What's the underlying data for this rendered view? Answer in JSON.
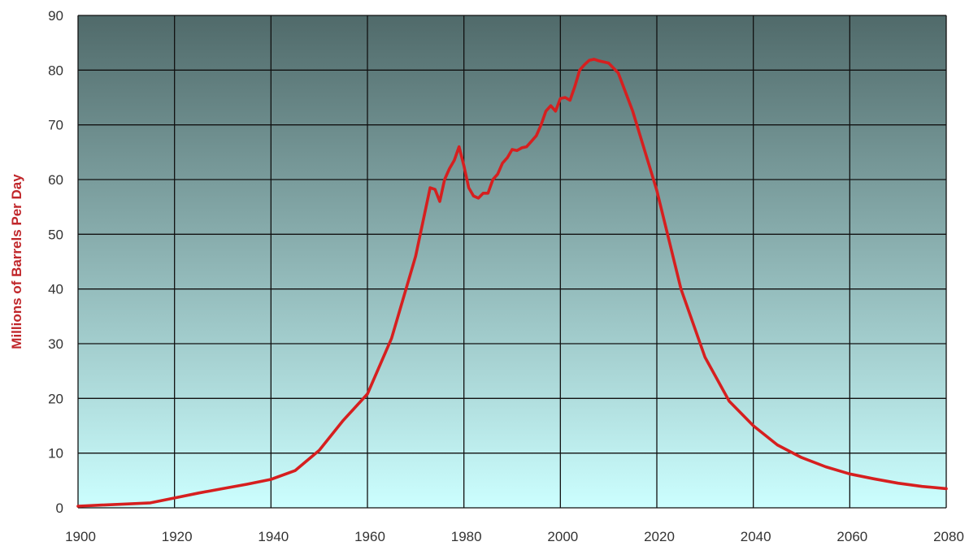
{
  "chart_data": {
    "type": "line",
    "title": "",
    "xlabel": "",
    "ylabel": "Millions of Barrels Per Day",
    "xlim": [
      1900,
      2080
    ],
    "ylim": [
      0,
      90
    ],
    "x_ticks": [
      1900,
      1920,
      1940,
      1960,
      1980,
      2000,
      2020,
      2040,
      2060,
      2080
    ],
    "y_ticks": [
      0,
      10,
      20,
      30,
      40,
      50,
      60,
      70,
      80,
      90
    ],
    "x_tick_labels": [
      "1900",
      "1920",
      "1940",
      "1960",
      "1980",
      "2000",
      "2020",
      "2040",
      "2060",
      "2080"
    ],
    "y_tick_labels": [
      "0",
      "10",
      "20",
      "30",
      "40",
      "50",
      "60",
      "70",
      "80",
      "90"
    ],
    "grid": true,
    "legend": "none",
    "series": [
      {
        "color": "#d61f1f",
        "points": [
          [
            1900,
            0.3
          ],
          [
            1905,
            0.5
          ],
          [
            1910,
            0.7
          ],
          [
            1915,
            0.9
          ],
          [
            1920,
            1.8
          ],
          [
            1925,
            2.7
          ],
          [
            1930,
            3.5
          ],
          [
            1935,
            4.3
          ],
          [
            1940,
            5.2
          ],
          [
            1945,
            6.8
          ],
          [
            1950,
            10.5
          ],
          [
            1955,
            16.0
          ],
          [
            1960,
            20.8
          ],
          [
            1965,
            31.0
          ],
          [
            1970,
            46.0
          ],
          [
            1973,
            58.5
          ],
          [
            1974,
            58.2
          ],
          [
            1975,
            56.0
          ],
          [
            1976,
            60.0
          ],
          [
            1977,
            62.0
          ],
          [
            1978,
            63.5
          ],
          [
            1979,
            66.0
          ],
          [
            1980,
            62.5
          ],
          [
            1981,
            58.5
          ],
          [
            1982,
            57.0
          ],
          [
            1983,
            56.6
          ],
          [
            1984,
            57.5
          ],
          [
            1985,
            57.5
          ],
          [
            1986,
            60.0
          ],
          [
            1987,
            61.0
          ],
          [
            1988,
            63.0
          ],
          [
            1989,
            64.0
          ],
          [
            1990,
            65.5
          ],
          [
            1991,
            65.3
          ],
          [
            1992,
            65.8
          ],
          [
            1993,
            66.0
          ],
          [
            1994,
            67.0
          ],
          [
            1995,
            68.0
          ],
          [
            1996,
            70.0
          ],
          [
            1997,
            72.5
          ],
          [
            1998,
            73.5
          ],
          [
            1999,
            72.5
          ],
          [
            2000,
            74.8
          ],
          [
            2001,
            75.0
          ],
          [
            2002,
            74.5
          ],
          [
            2003,
            77.0
          ],
          [
            2004,
            80.0
          ],
          [
            2005,
            81.0
          ],
          [
            2006,
            81.8
          ],
          [
            2007,
            82.0
          ],
          [
            2008,
            81.7
          ],
          [
            2009,
            81.5
          ],
          [
            2010,
            81.3
          ],
          [
            2012,
            79.5
          ],
          [
            2015,
            72.5
          ],
          [
            2020,
            58.0
          ],
          [
            2025,
            40.0
          ],
          [
            2030,
            27.5
          ],
          [
            2035,
            19.5
          ],
          [
            2040,
            15.0
          ],
          [
            2045,
            11.5
          ],
          [
            2050,
            9.2
          ],
          [
            2055,
            7.5
          ],
          [
            2060,
            6.2
          ],
          [
            2065,
            5.3
          ],
          [
            2070,
            4.5
          ],
          [
            2075,
            3.9
          ],
          [
            2080,
            3.5
          ]
        ]
      }
    ],
    "colors": {
      "plot_top": "#506a6a",
      "plot_bottom": "#ccffff",
      "grid": "#111111",
      "line": "#d61f1f",
      "ylabel": "#c0262a"
    }
  }
}
